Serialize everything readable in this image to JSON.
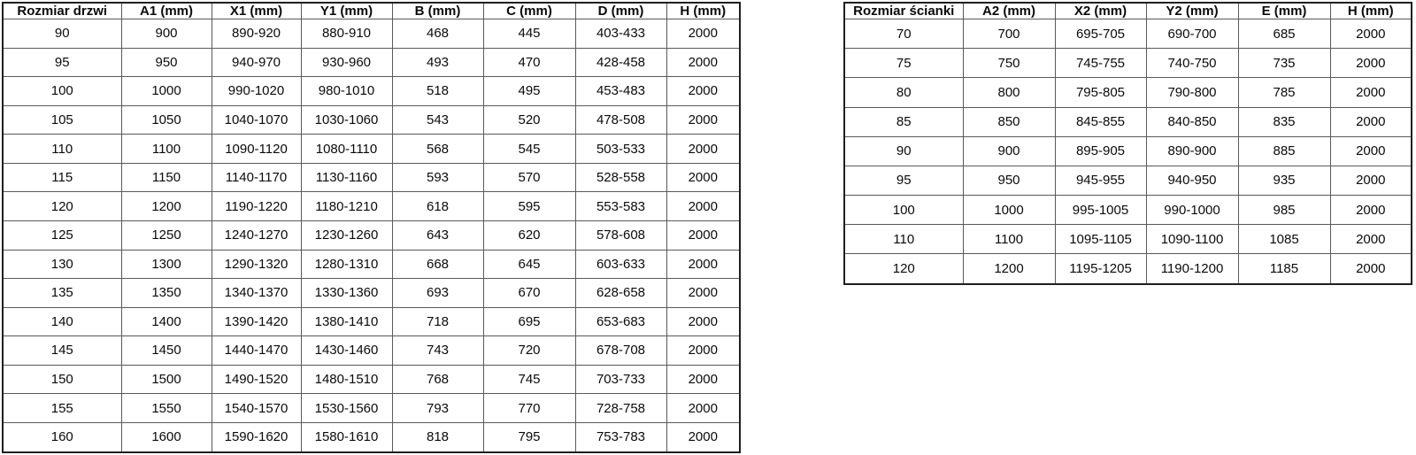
{
  "colors": {
    "background": "#ffffff",
    "text": "#0a0a0a",
    "border_outer": "#1f1f1f",
    "border_inner": "#595959"
  },
  "door_table": {
    "headers": [
      "Rozmiar drzwi",
      "A1 (mm)",
      "X1 (mm)",
      "Y1 (mm)",
      "B (mm)",
      "C (mm)",
      "D (mm)",
      "H (mm)"
    ],
    "rows": [
      [
        "90",
        "900",
        "890-920",
        "880-910",
        "468",
        "445",
        "403-433",
        "2000"
      ],
      [
        "95",
        "950",
        "940-970",
        "930-960",
        "493",
        "470",
        "428-458",
        "2000"
      ],
      [
        "100",
        "1000",
        "990-1020",
        "980-1010",
        "518",
        "495",
        "453-483",
        "2000"
      ],
      [
        "105",
        "1050",
        "1040-1070",
        "1030-1060",
        "543",
        "520",
        "478-508",
        "2000"
      ],
      [
        "110",
        "1100",
        "1090-1120",
        "1080-1110",
        "568",
        "545",
        "503-533",
        "2000"
      ],
      [
        "115",
        "1150",
        "1140-1170",
        "1130-1160",
        "593",
        "570",
        "528-558",
        "2000"
      ],
      [
        "120",
        "1200",
        "1190-1220",
        "1180-1210",
        "618",
        "595",
        "553-583",
        "2000"
      ],
      [
        "125",
        "1250",
        "1240-1270",
        "1230-1260",
        "643",
        "620",
        "578-608",
        "2000"
      ],
      [
        "130",
        "1300",
        "1290-1320",
        "1280-1310",
        "668",
        "645",
        "603-633",
        "2000"
      ],
      [
        "135",
        "1350",
        "1340-1370",
        "1330-1360",
        "693",
        "670",
        "628-658",
        "2000"
      ],
      [
        "140",
        "1400",
        "1390-1420",
        "1380-1410",
        "718",
        "695",
        "653-683",
        "2000"
      ],
      [
        "145",
        "1450",
        "1440-1470",
        "1430-1460",
        "743",
        "720",
        "678-708",
        "2000"
      ],
      [
        "150",
        "1500",
        "1490-1520",
        "1480-1510",
        "768",
        "745",
        "703-733",
        "2000"
      ],
      [
        "155",
        "1550",
        "1540-1570",
        "1530-1560",
        "793",
        "770",
        "728-758",
        "2000"
      ],
      [
        "160",
        "1600",
        "1590-1620",
        "1580-1610",
        "818",
        "795",
        "753-783",
        "2000"
      ]
    ]
  },
  "wall_table": {
    "headers": [
      "Rozmiar ścianki",
      "A2 (mm)",
      "X2 (mm)",
      "Y2 (mm)",
      "E (mm)",
      "H (mm)"
    ],
    "rows": [
      [
        "70",
        "700",
        "695-705",
        "690-700",
        "685",
        "2000"
      ],
      [
        "75",
        "750",
        "745-755",
        "740-750",
        "735",
        "2000"
      ],
      [
        "80",
        "800",
        "795-805",
        "790-800",
        "785",
        "2000"
      ],
      [
        "85",
        "850",
        "845-855",
        "840-850",
        "835",
        "2000"
      ],
      [
        "90",
        "900",
        "895-905",
        "890-900",
        "885",
        "2000"
      ],
      [
        "95",
        "950",
        "945-955",
        "940-950",
        "935",
        "2000"
      ],
      [
        "100",
        "1000",
        "995-1005",
        "990-1000",
        "985",
        "2000"
      ],
      [
        "110",
        "1100",
        "1095-1105",
        "1090-1100",
        "1085",
        "2000"
      ],
      [
        "120",
        "1200",
        "1195-1205",
        "1190-1200",
        "1185",
        "2000"
      ]
    ]
  }
}
